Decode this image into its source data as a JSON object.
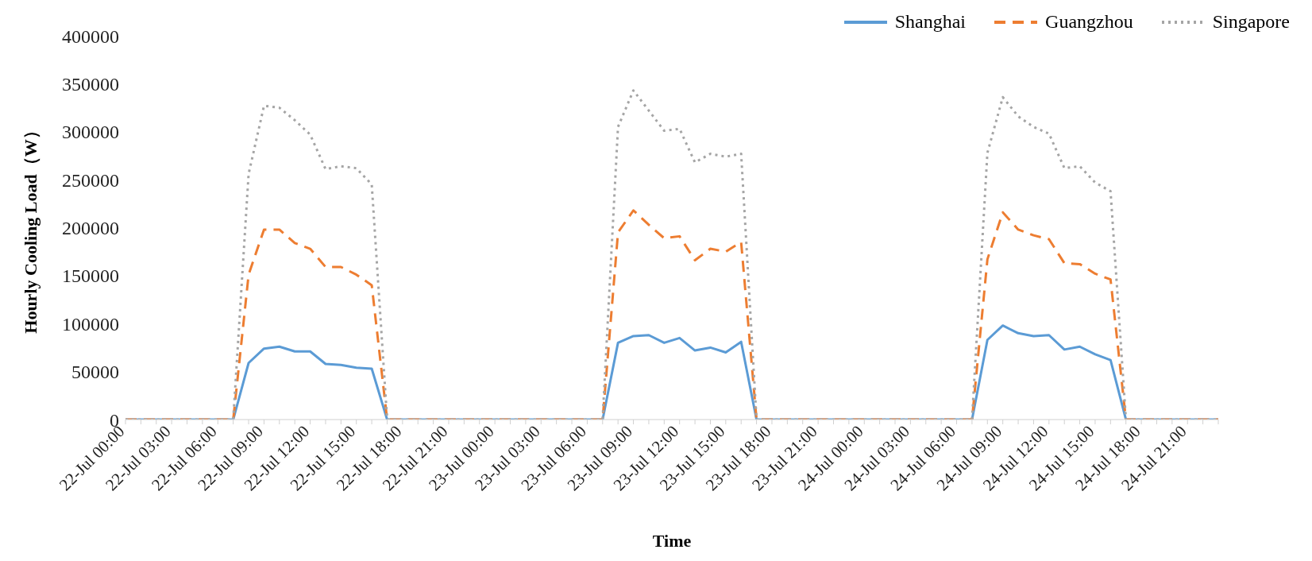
{
  "chart_data": {
    "type": "line",
    "xlabel": "Time",
    "ylabel": "Hourly Cooling Load（W）",
    "categories": [
      "22-Jul 00:00",
      null,
      null,
      "22-Jul 03:00",
      null,
      null,
      "22-Jul 06:00",
      null,
      null,
      "22-Jul 09:00",
      null,
      null,
      "22-Jul 12:00",
      null,
      null,
      "22-Jul 15:00",
      null,
      null,
      "22-Jul 18:00",
      null,
      null,
      "22-Jul 21:00",
      null,
      null,
      "23-Jul 00:00",
      null,
      null,
      "23-Jul 03:00",
      null,
      null,
      "23-Jul 06:00",
      null,
      null,
      "23-Jul 09:00",
      null,
      null,
      "23-Jul 12:00",
      null,
      null,
      "23-Jul 15:00",
      null,
      null,
      "23-Jul 18:00",
      null,
      null,
      "23-Jul 21:00",
      null,
      null,
      "24-Jul 00:00",
      null,
      null,
      "24-Jul 03:00",
      null,
      null,
      "24-Jul 06:00",
      null,
      null,
      "24-Jul 09:00",
      null,
      null,
      "24-Jul 12:00",
      null,
      null,
      "24-Jul 15:00",
      null,
      null,
      "24-Jul 18:00",
      null,
      null,
      "24-Jul 21:00",
      null,
      null
    ],
    "ylim": [
      0,
      400000
    ],
    "yticks": [
      0,
      50000,
      100000,
      150000,
      200000,
      250000,
      300000,
      350000,
      400000
    ],
    "grid": false,
    "legend": "top right",
    "marker": "none",
    "series": [
      {
        "name": "Shanghai",
        "color": "#5b9bd5",
        "line_style": "solid",
        "values": [
          0,
          0,
          0,
          0,
          0,
          0,
          0,
          0,
          59000,
          74000,
          76000,
          71000,
          71000,
          58000,
          57000,
          54000,
          53000,
          0,
          0,
          0,
          0,
          0,
          0,
          0,
          0,
          0,
          0,
          0,
          0,
          0,
          0,
          0,
          80000,
          87000,
          88000,
          80000,
          85000,
          72000,
          75000,
          70000,
          81000,
          0,
          0,
          0,
          0,
          0,
          0,
          0,
          0,
          0,
          0,
          0,
          0,
          0,
          0,
          0,
          83000,
          98000,
          90000,
          87000,
          88000,
          73000,
          76000,
          68000,
          62000,
          0,
          0,
          0,
          0,
          0,
          0,
          0
        ]
      },
      {
        "name": "Guangzhou",
        "color": "#ed7d31",
        "line_style": "dashed",
        "values": [
          0,
          0,
          0,
          0,
          0,
          0,
          0,
          0,
          151000,
          198000,
          198000,
          184000,
          178000,
          159000,
          159000,
          151000,
          140000,
          0,
          0,
          0,
          0,
          0,
          0,
          0,
          0,
          0,
          0,
          0,
          0,
          0,
          0,
          0,
          195000,
          218000,
          203000,
          189000,
          191000,
          166000,
          178000,
          175000,
          185000,
          0,
          0,
          0,
          0,
          0,
          0,
          0,
          0,
          0,
          0,
          0,
          0,
          0,
          0,
          0,
          167000,
          216000,
          198000,
          192000,
          188000,
          163000,
          162000,
          152000,
          146000,
          0,
          0,
          0,
          0,
          0,
          0,
          0
        ]
      },
      {
        "name": "Singapore",
        "color": "#a5a5a5",
        "line_style": "dotted",
        "values": [
          0,
          0,
          0,
          0,
          0,
          0,
          0,
          0,
          256000,
          327000,
          325000,
          312000,
          297000,
          261000,
          264000,
          262000,
          245000,
          0,
          0,
          0,
          0,
          0,
          0,
          0,
          0,
          0,
          0,
          0,
          0,
          0,
          0,
          0,
          305000,
          343000,
          322000,
          301000,
          303000,
          268000,
          277000,
          274000,
          277000,
          0,
          0,
          0,
          0,
          0,
          0,
          0,
          0,
          0,
          0,
          0,
          0,
          0,
          0,
          0,
          278000,
          336000,
          316000,
          305000,
          298000,
          262000,
          264000,
          247000,
          238000,
          0,
          0,
          0,
          0,
          0,
          0,
          0
        ]
      }
    ]
  }
}
